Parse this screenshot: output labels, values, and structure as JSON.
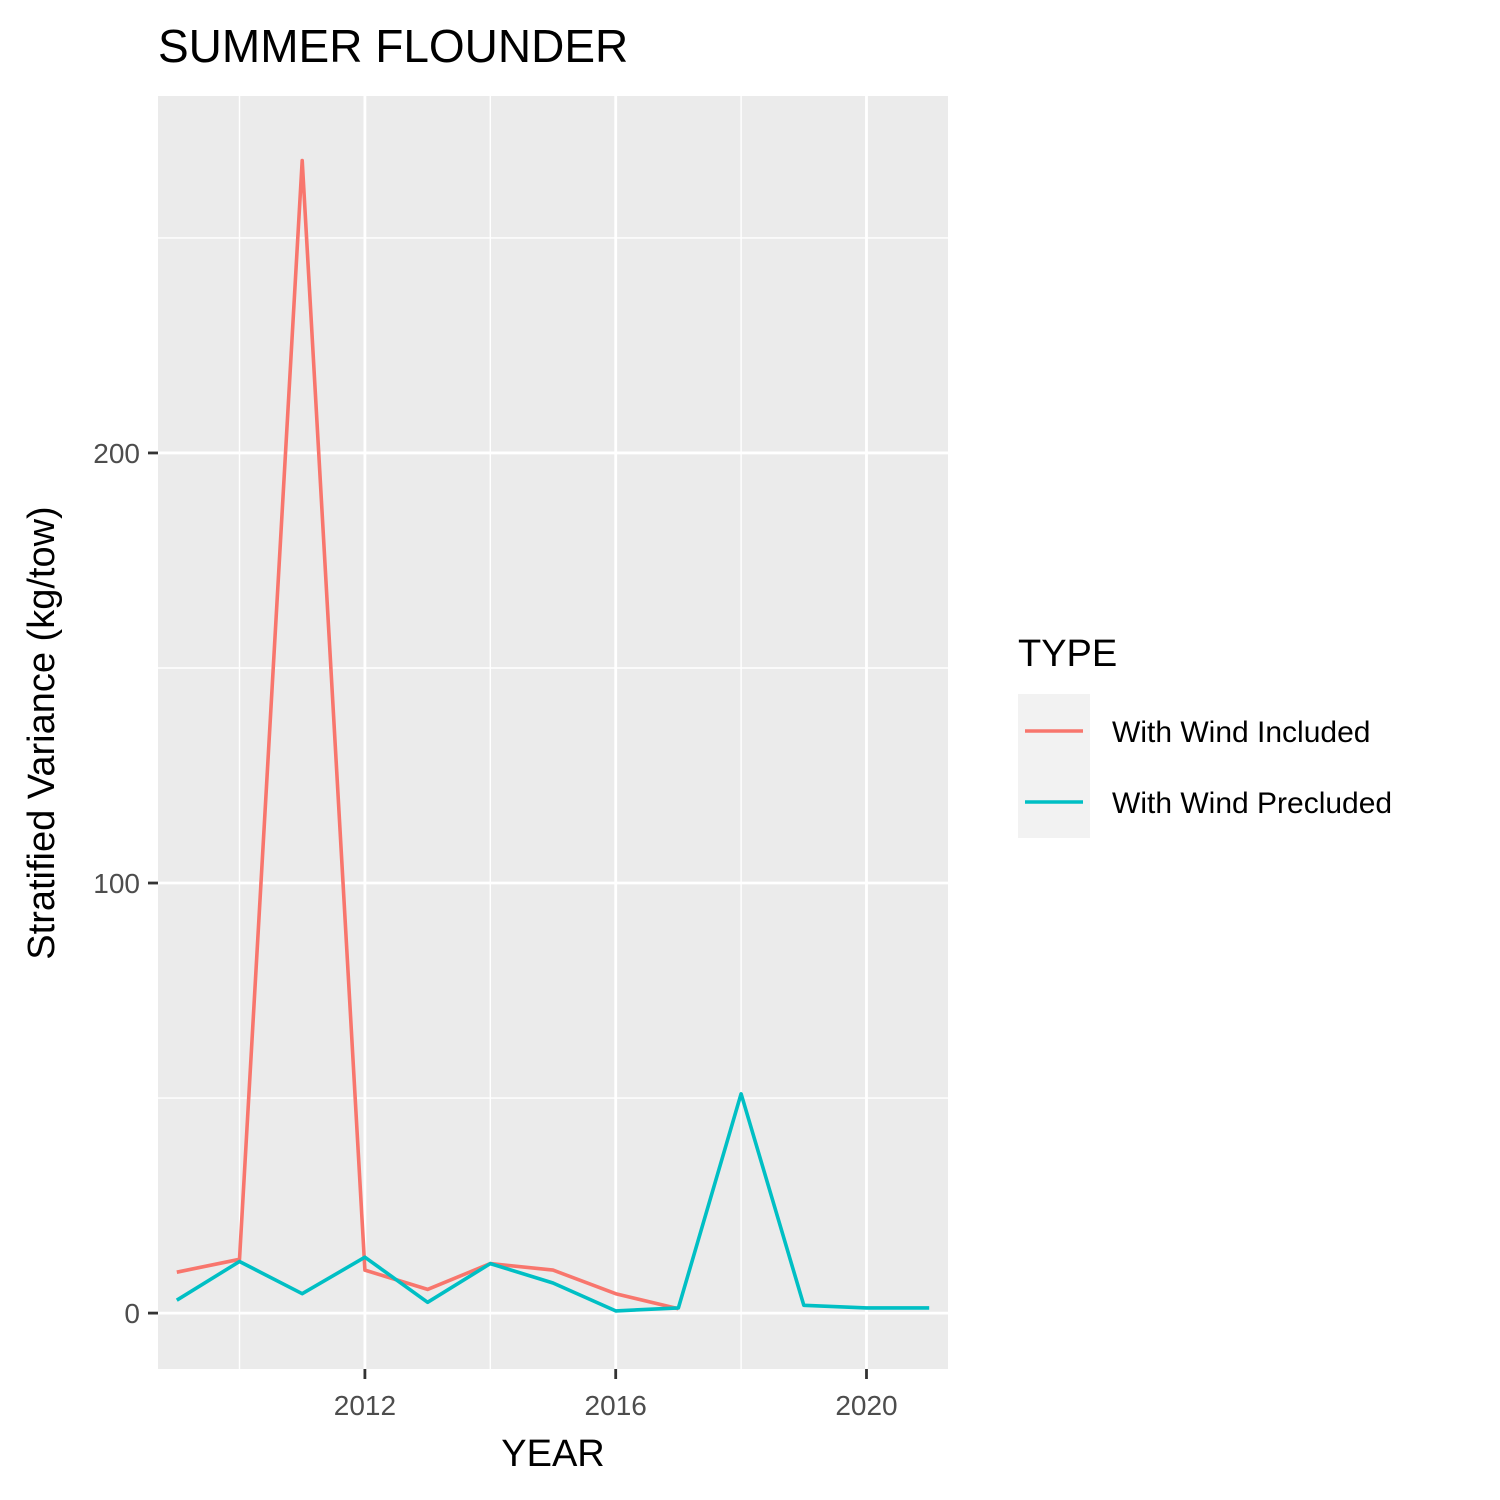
{
  "chart_data": {
    "type": "line",
    "title": "SUMMER FLOUNDER",
    "xlabel": "YEAR",
    "ylabel": "Stratified Variance (kg/tow)",
    "xlim": [
      2008.7,
      2021.3
    ],
    "ylim": [
      -13,
      283
    ],
    "x_ticks": [
      2012,
      2016,
      2020
    ],
    "x_minor": [
      2010,
      2014,
      2018
    ],
    "y_ticks": [
      0,
      100,
      200
    ],
    "y_minor": [
      50,
      150,
      250
    ],
    "grid": true,
    "legend": {
      "title": "TYPE",
      "position": "right"
    },
    "series": [
      {
        "name": "With Wind Included",
        "color": "#F8766D",
        "x": [
          2009,
          2010,
          2011,
          2012,
          2013,
          2014,
          2015,
          2016,
          2017
        ],
        "y": [
          9.5,
          12.5,
          268,
          10,
          5.5,
          11.5,
          10,
          4.5,
          1
        ]
      },
      {
        "name": "With Wind Precluded",
        "color": "#00BFC4",
        "x": [
          2009,
          2010,
          2011,
          2012,
          2013,
          2014,
          2015,
          2016,
          2017,
          2018,
          2019,
          2020,
          2021
        ],
        "y": [
          3,
          12,
          4.5,
          13,
          2.5,
          11.5,
          7,
          0.5,
          1.2,
          51,
          1.8,
          1.2,
          1.2
        ]
      }
    ]
  }
}
